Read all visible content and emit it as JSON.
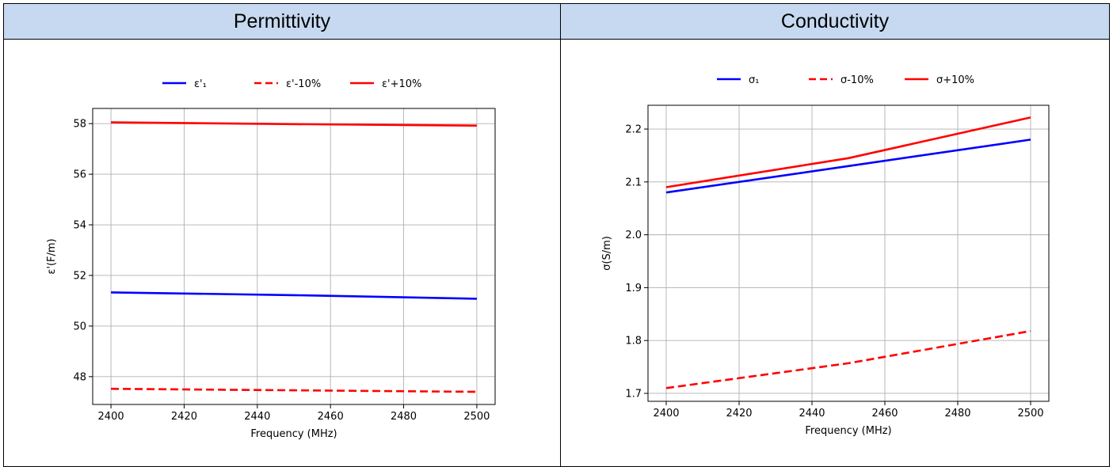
{
  "headers": {
    "left": "Permittivity",
    "right": "Conductivity"
  },
  "chart_data": [
    {
      "type": "line",
      "xlabel": "Frequency (MHz)",
      "ylabel": "ε'(F/m)",
      "xlim": [
        2395,
        2505
      ],
      "ylim": [
        46.9,
        58.6
      ],
      "xticks": [
        2400,
        2420,
        2440,
        2460,
        2480,
        2500
      ],
      "yticks": [
        48,
        50,
        52,
        54,
        56,
        58
      ],
      "grid": true,
      "legend": "top-center",
      "series": [
        {
          "name": "ε'₁",
          "color": "#0000ff",
          "dash": false,
          "x": [
            2400,
            2450,
            2500
          ],
          "y": [
            51.33,
            51.22,
            51.08
          ]
        },
        {
          "name": "ε'-10%",
          "color": "#ff0000",
          "dash": true,
          "x": [
            2400,
            2450,
            2500
          ],
          "y": [
            47.52,
            47.46,
            47.4
          ]
        },
        {
          "name": "ε'+10%",
          "color": "#ff0000",
          "dash": false,
          "x": [
            2400,
            2450,
            2500
          ],
          "y": [
            58.05,
            57.98,
            57.92
          ]
        }
      ]
    },
    {
      "type": "line",
      "xlabel": "Frequency (MHz)",
      "ylabel": "σ(S/m)",
      "xlim": [
        2395,
        2505
      ],
      "ylim": [
        1.685,
        2.245
      ],
      "xticks": [
        2400,
        2420,
        2440,
        2460,
        2480,
        2500
      ],
      "yticks": [
        1.7,
        1.8,
        1.9,
        2.0,
        2.1,
        2.2
      ],
      "grid": true,
      "legend": "top-center",
      "series": [
        {
          "name": "σ₁",
          "color": "#0000ff",
          "dash": false,
          "x": [
            2400,
            2450,
            2500
          ],
          "y": [
            2.08,
            2.13,
            2.18
          ]
        },
        {
          "name": "σ-10%",
          "color": "#ff0000",
          "dash": true,
          "x": [
            2400,
            2450,
            2500
          ],
          "y": [
            1.71,
            1.757,
            1.818
          ]
        },
        {
          "name": "σ+10%",
          "color": "#ff0000",
          "dash": false,
          "x": [
            2400,
            2450,
            2500
          ],
          "y": [
            2.09,
            2.145,
            2.222
          ]
        }
      ]
    }
  ]
}
